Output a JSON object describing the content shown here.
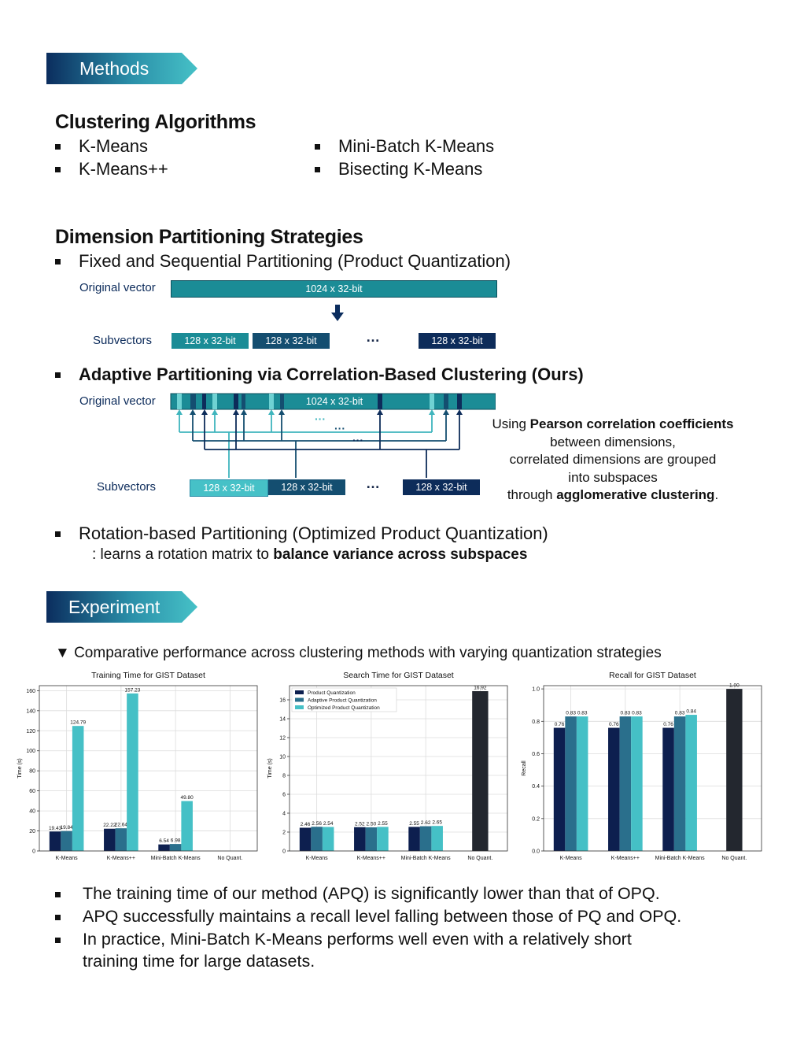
{
  "methods_banner": "Methods",
  "clustering": {
    "title": "Clustering Algorithms",
    "items": [
      "K-Means",
      "K-Means++",
      "Mini-Batch K-Means",
      "Bisecting K-Means"
    ]
  },
  "partitioning": {
    "title": "Dimension Partitioning Strategies",
    "pq": {
      "bullet": "Fixed and Sequential Partitioning (Product Quantization)",
      "original_label": "Original vector",
      "original_box": "1024 x 32-bit",
      "subvectors_label": "Subvectors",
      "sub_boxes": [
        "128 x 32-bit",
        "128 x 32-bit",
        "128 x 32-bit"
      ],
      "dots": "…"
    },
    "apq": {
      "bullet": "Adaptive Partitioning via Correlation-Based Clustering (Ours)",
      "original_label": "Original vector",
      "original_box": "1024 x 32-bit",
      "subvectors_label": "Subvectors",
      "sub_boxes": [
        "128 x 32-bit",
        "128 x 32-bit",
        "128 x 32-bit"
      ],
      "dots": "…",
      "note": {
        "l1a": "Using ",
        "l1b": "Pearson correlation coefficients",
        "l2": "between dimensions,",
        "l3": "correlated dimensions are grouped",
        "l4": "into subspaces",
        "l5a": "through ",
        "l5b": "agglomerative clustering",
        "l5c": "."
      }
    },
    "opq": {
      "bullet": "Rotation-based Partitioning (Optimized Product Quantization)",
      "sub_a": ": learns a rotation matrix to ",
      "sub_b": "balance variance across subspaces"
    }
  },
  "experiment_banner": "Experiment",
  "caption": "▼ Comparative performance across clustering methods with varying quantization strategies",
  "colors": {
    "pq": "#0d1f4f",
    "apq": "#2a6f8c",
    "opq": "#45c0c6",
    "noquant": "#23272f",
    "banner_dark": "#0b2d5e",
    "banner_light": "#46c1c7"
  },
  "chart_data": [
    {
      "type": "bar",
      "title": "Training Time for GIST Dataset",
      "ylabel": "Time (s)",
      "categories": [
        "K-Means",
        "K-Means++",
        "Mini-Batch K-Means",
        "No Quant."
      ],
      "ylim": [
        0,
        165
      ],
      "yticks": [
        0,
        20,
        40,
        60,
        80,
        100,
        120,
        140,
        160
      ],
      "series": [
        {
          "values": [
            19.43,
            22.22,
            6.54,
            null
          ],
          "labels": [
            "19.43",
            "22.22",
            "6.54",
            ""
          ]
        },
        {
          "values": [
            19.84,
            22.64,
            6.98,
            null
          ],
          "labels": [
            "19.84",
            "22.64",
            "6.98",
            ""
          ]
        },
        {
          "values": [
            124.79,
            157.23,
            49.8,
            null
          ],
          "labels": [
            "124.79",
            "157.23",
            "49.80",
            ""
          ]
        }
      ],
      "noquant": null,
      "grid": true
    },
    {
      "type": "bar",
      "title": "Search Time for GIST Dataset",
      "ylabel": "Time (s)",
      "categories": [
        "K-Means",
        "K-Means++",
        "Mini-Batch K-Means",
        "No Quant."
      ],
      "ylim": [
        0,
        17.5
      ],
      "yticks": [
        0,
        2,
        4,
        6,
        8,
        10,
        12,
        14,
        16
      ],
      "series": [
        {
          "name": "Product Quantization",
          "values": [
            2.46,
            2.52,
            2.55,
            null
          ],
          "labels": [
            "2.46",
            "2.52",
            "2.55",
            ""
          ]
        },
        {
          "name": "Adaptive Product Quantization",
          "values": [
            2.56,
            2.5,
            2.62,
            null
          ],
          "labels": [
            "2.56",
            "2.50",
            "2.62",
            ""
          ]
        },
        {
          "name": "Optimized Product Quantization",
          "values": [
            2.54,
            2.55,
            2.65,
            null
          ],
          "labels": [
            "2.54",
            "2.55",
            "2.65",
            ""
          ]
        }
      ],
      "noquant": {
        "value": 16.92,
        "label": "16.92"
      },
      "legend": "top-left",
      "grid": true
    },
    {
      "type": "bar",
      "title": "Recall for GIST Dataset",
      "ylabel": "Recall",
      "categories": [
        "K-Means",
        "K-Means++",
        "Mini-Batch K-Means",
        "No Quant."
      ],
      "ylim": [
        0,
        1.02
      ],
      "yticks": [
        0.0,
        0.2,
        0.4,
        0.6,
        0.8,
        1.0
      ],
      "ytick_labels": [
        "0.0",
        "0.2",
        "0.4",
        "0.6",
        "0.8",
        "1.0"
      ],
      "series": [
        {
          "values": [
            0.76,
            0.76,
            0.76,
            null
          ],
          "labels": [
            "0.76",
            "0.76",
            "0.76",
            ""
          ]
        },
        {
          "values": [
            0.83,
            0.83,
            0.83,
            null
          ],
          "labels": [
            "0.83",
            "0.83",
            "0.83",
            ""
          ]
        },
        {
          "values": [
            0.83,
            0.83,
            0.84,
            null
          ],
          "labels": [
            "0.83",
            "0.83",
            "0.84",
            ""
          ]
        }
      ],
      "noquant": {
        "value": 1.0,
        "label": "1.00"
      },
      "grid": true
    }
  ],
  "findings": [
    "The training time of our method (APQ) is significantly lower than that of OPQ.",
    "APQ successfully maintains a recall level falling between those of PQ and OPQ.",
    "In practice, Mini-Batch K-Means performs well even with a relatively short",
    "training time for large datasets."
  ]
}
